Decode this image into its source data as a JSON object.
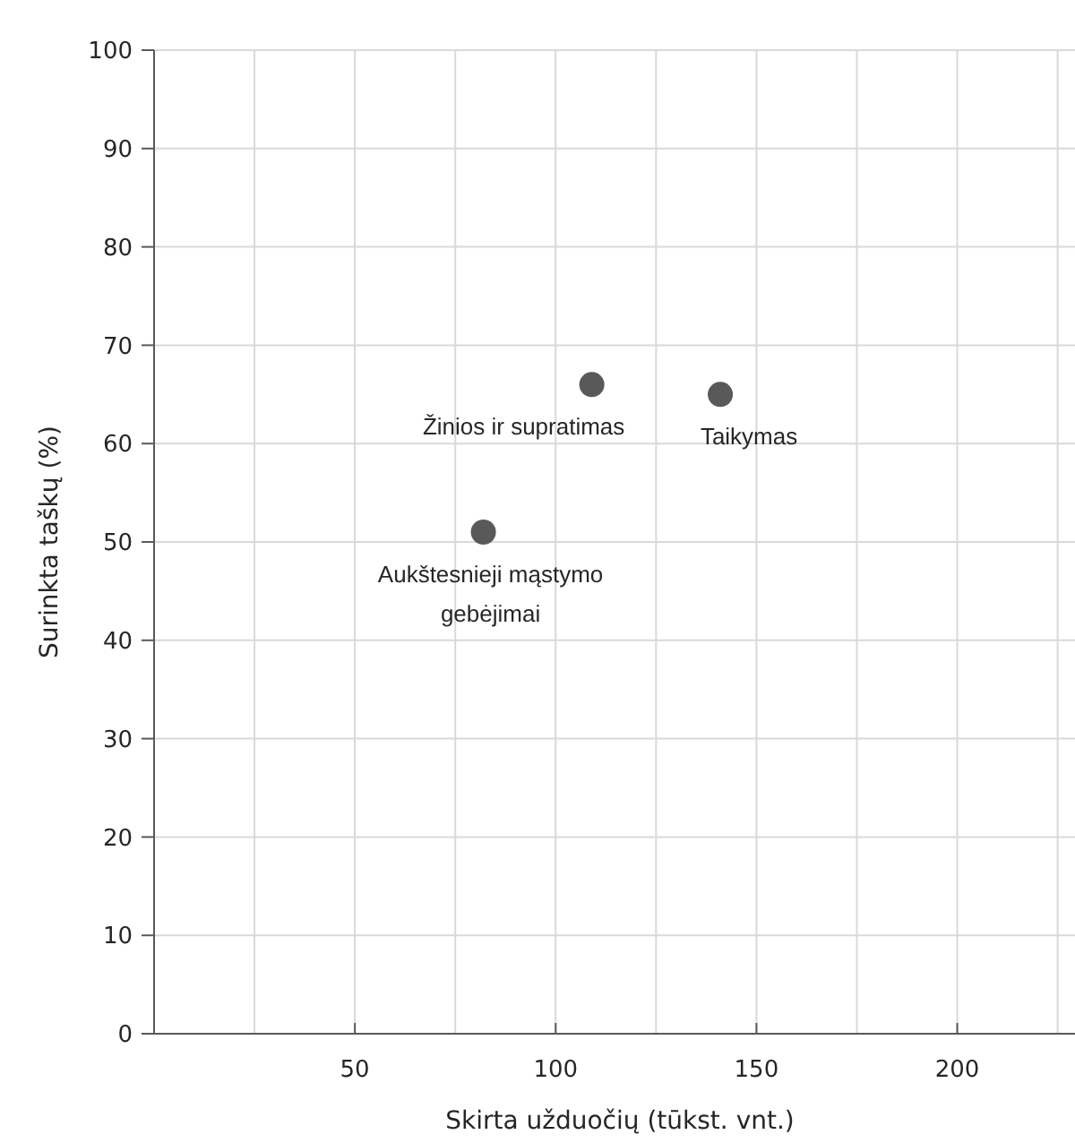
{
  "chart_data": {
    "type": "scatter",
    "xlabel": "Skirta užduočių (tūkst. vnt.)",
    "ylabel": "Surinkta taškų (%)",
    "x": [
      82,
      109,
      141
    ],
    "values": [
      51,
      66,
      65
    ],
    "color": "#595959",
    "marker": "circle",
    "xlim": [
      0,
      232
    ],
    "xticks": [
      {
        "value": 25,
        "label": null
      },
      50,
      {
        "value": 75,
        "label": null
      },
      100,
      {
        "value": 125,
        "label": null
      },
      150,
      {
        "value": 175,
        "label": null
      },
      200,
      {
        "value": 225,
        "label": null
      }
    ],
    "ylim": [
      0,
      100
    ],
    "yticks": [
      0,
      10,
      20,
      30,
      40,
      50,
      60,
      70,
      80,
      90,
      100
    ],
    "grid": true,
    "annotations": [
      {
        "text": "Aukštesnieji mąstymo\ngebėjimai",
        "x": 82,
        "y": 51
      },
      {
        "text": "Žinios ir supratimas",
        "x": 109,
        "y": 66
      },
      {
        "text": "Taikymas",
        "x": 141,
        "y": 65
      }
    ]
  }
}
